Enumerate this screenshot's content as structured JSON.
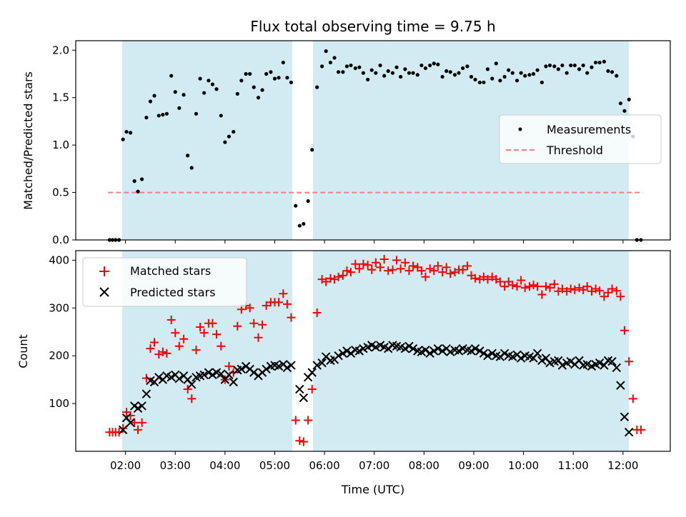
{
  "chart_data": {
    "type": "scatter",
    "title": "Flux total observing time = 9.75 h",
    "xlabel": "Time (UTC)",
    "x_unit": "hours UTC",
    "xlim": [
      1.0,
      12.95
    ],
    "x_ticks": [
      {
        "value": 2,
        "label": "02:00"
      },
      {
        "value": 3,
        "label": "03:00"
      },
      {
        "value": 4,
        "label": "04:00"
      },
      {
        "value": 5,
        "label": "05:00"
      },
      {
        "value": 6,
        "label": "06:00"
      },
      {
        "value": 7,
        "label": "07:00"
      },
      {
        "value": 8,
        "label": "08:00"
      },
      {
        "value": 9,
        "label": "09:00"
      },
      {
        "value": 10,
        "label": "10:00"
      },
      {
        "value": 11,
        "label": "11:00"
      },
      {
        "value": 12,
        "label": "12:00"
      }
    ],
    "shaded_intervals": [
      {
        "start": 1.93,
        "end": 5.35,
        "color": "#add8e6"
      },
      {
        "start": 5.77,
        "end": 12.12,
        "color": "#add8e6"
      }
    ],
    "top_panel": {
      "ylabel": "Matched/Predicted stars",
      "ylim": [
        0,
        2.1
      ],
      "y_ticks": [
        {
          "value": 0.0,
          "label": "0.0"
        },
        {
          "value": 0.5,
          "label": "0.5"
        },
        {
          "value": 1.0,
          "label": "1.0"
        },
        {
          "value": 1.5,
          "label": "1.5"
        },
        {
          "value": 2.0,
          "label": "2.0"
        }
      ],
      "legend": {
        "position": "center-right",
        "entries": [
          {
            "label": "Measurements",
            "marker": "dot",
            "color": "#000000"
          },
          {
            "label": "Threshold",
            "marker": "dashed-line",
            "color": "#f08080"
          }
        ]
      },
      "threshold": {
        "name": "Threshold",
        "value": 0.5,
        "x_range": [
          1.65,
          12.4
        ],
        "color": "#f08080"
      },
      "series": [
        {
          "name": "Measurements",
          "color": "#000000",
          "x": [
            1.68,
            1.74,
            1.8,
            1.87,
            1.95,
            2.02,
            2.1,
            2.18,
            2.25,
            2.33,
            2.42,
            2.5,
            2.58,
            2.67,
            2.75,
            2.83,
            2.92,
            3.0,
            3.08,
            3.17,
            3.25,
            3.33,
            3.42,
            3.5,
            3.58,
            3.67,
            3.75,
            3.83,
            3.92,
            4.0,
            4.08,
            4.17,
            4.25,
            4.33,
            4.42,
            4.5,
            4.58,
            4.67,
            4.75,
            4.83,
            4.92,
            5.0,
            5.08,
            5.17,
            5.25,
            5.33,
            5.42,
            5.5,
            5.58,
            5.67,
            5.75,
            5.85,
            5.95,
            6.03,
            6.12,
            6.2,
            6.28,
            6.37,
            6.45,
            6.53,
            6.62,
            6.7,
            6.78,
            6.87,
            6.95,
            7.03,
            7.12,
            7.2,
            7.28,
            7.37,
            7.45,
            7.53,
            7.62,
            7.7,
            7.78,
            7.87,
            7.95,
            8.03,
            8.12,
            8.2,
            8.28,
            8.37,
            8.45,
            8.53,
            8.62,
            8.7,
            8.78,
            8.87,
            8.95,
            9.03,
            9.12,
            9.2,
            9.28,
            9.37,
            9.45,
            9.53,
            9.62,
            9.7,
            9.78,
            9.87,
            9.95,
            10.03,
            10.12,
            10.2,
            10.28,
            10.37,
            10.45,
            10.53,
            10.62,
            10.7,
            10.78,
            10.87,
            10.95,
            11.03,
            11.12,
            11.2,
            11.28,
            11.37,
            11.45,
            11.53,
            11.62,
            11.7,
            11.78,
            11.87,
            11.95,
            12.03,
            12.12,
            12.2,
            12.28,
            12.36
          ],
          "y": [
            0.0,
            0.0,
            0.0,
            0.0,
            1.06,
            1.14,
            1.13,
            0.62,
            0.51,
            0.64,
            1.29,
            1.46,
            1.52,
            1.31,
            1.32,
            1.33,
            1.73,
            1.56,
            1.39,
            1.53,
            0.89,
            0.76,
            1.33,
            1.7,
            1.55,
            1.68,
            1.64,
            1.59,
            1.31,
            1.03,
            1.09,
            1.14,
            1.54,
            1.68,
            1.75,
            1.75,
            1.61,
            1.5,
            1.58,
            1.75,
            1.77,
            1.7,
            1.71,
            1.87,
            1.71,
            1.66,
            0.36,
            0.15,
            0.17,
            0.41,
            0.95,
            1.61,
            1.83,
            1.99,
            1.87,
            1.92,
            1.77,
            1.77,
            1.83,
            1.84,
            1.81,
            1.82,
            1.76,
            1.69,
            1.79,
            1.76,
            1.84,
            1.73,
            1.78,
            1.76,
            1.82,
            1.72,
            1.8,
            1.76,
            1.76,
            1.74,
            1.84,
            1.81,
            1.84,
            1.86,
            1.85,
            1.72,
            1.78,
            1.77,
            1.74,
            1.76,
            1.81,
            1.83,
            1.72,
            1.69,
            1.66,
            1.66,
            1.8,
            1.7,
            1.86,
            1.68,
            1.72,
            1.79,
            1.76,
            1.68,
            1.76,
            1.73,
            1.74,
            1.75,
            1.79,
            1.66,
            1.83,
            1.84,
            1.83,
            1.8,
            1.84,
            1.76,
            1.84,
            1.84,
            1.8,
            1.84,
            1.76,
            1.82,
            1.87,
            1.87,
            1.88,
            1.78,
            1.77,
            1.73,
            1.44,
            1.36,
            1.48,
            1.09,
            0.0,
            0.0
          ]
        }
      ]
    },
    "bottom_panel": {
      "ylabel": "Count",
      "ylim": [
        0,
        420
      ],
      "y_ticks": [
        {
          "value": 100,
          "label": "100"
        },
        {
          "value": 200,
          "label": "200"
        },
        {
          "value": 300,
          "label": "300"
        },
        {
          "value": 400,
          "label": "400"
        }
      ],
      "legend": {
        "position": "upper-left",
        "entries": [
          {
            "label": "Matched stars",
            "marker": "plus",
            "color": "#ff0000"
          },
          {
            "label": "Predicted stars",
            "marker": "x",
            "color": "#000000"
          }
        ]
      },
      "series": [
        {
          "name": "Matched stars",
          "marker": "plus",
          "color": "#ff0000",
          "x": [
            1.68,
            1.74,
            1.8,
            1.87,
            1.95,
            2.02,
            2.1,
            2.18,
            2.25,
            2.33,
            2.42,
            2.5,
            2.58,
            2.67,
            2.75,
            2.83,
            2.92,
            3.0,
            3.08,
            3.17,
            3.25,
            3.33,
            3.42,
            3.5,
            3.58,
            3.67,
            3.75,
            3.83,
            3.92,
            4.0,
            4.08,
            4.17,
            4.25,
            4.33,
            4.42,
            4.5,
            4.58,
            4.67,
            4.75,
            4.83,
            4.92,
            5.0,
            5.08,
            5.17,
            5.25,
            5.33,
            5.42,
            5.5,
            5.58,
            5.67,
            5.75,
            5.85,
            5.95,
            6.03,
            6.12,
            6.2,
            6.28,
            6.37,
            6.45,
            6.53,
            6.62,
            6.7,
            6.78,
            6.87,
            6.95,
            7.03,
            7.12,
            7.2,
            7.28,
            7.37,
            7.45,
            7.53,
            7.62,
            7.7,
            7.78,
            7.87,
            7.95,
            8.03,
            8.12,
            8.2,
            8.28,
            8.37,
            8.45,
            8.53,
            8.62,
            8.7,
            8.78,
            8.87,
            8.95,
            9.03,
            9.12,
            9.2,
            9.28,
            9.37,
            9.45,
            9.53,
            9.62,
            9.7,
            9.78,
            9.87,
            9.95,
            10.03,
            10.12,
            10.2,
            10.28,
            10.37,
            10.45,
            10.53,
            10.62,
            10.7,
            10.78,
            10.87,
            10.95,
            11.03,
            11.12,
            11.2,
            11.28,
            11.37,
            11.45,
            11.53,
            11.62,
            11.7,
            11.78,
            11.87,
            11.95,
            12.03,
            12.12,
            12.2,
            12.28,
            12.36
          ],
          "y": [
            40,
            40,
            40,
            40,
            48,
            82,
            75,
            60,
            45,
            60,
            153,
            215,
            228,
            203,
            208,
            205,
            275,
            248,
            220,
            235,
            130,
            110,
            212,
            260,
            248,
            268,
            268,
            245,
            220,
            150,
            178,
            165,
            262,
            297,
            305,
            300,
            268,
            238,
            265,
            305,
            312,
            312,
            312,
            330,
            308,
            280,
            65,
            22,
            20,
            65,
            130,
            290,
            360,
            355,
            362,
            360,
            365,
            368,
            378,
            375,
            392,
            382,
            392,
            390,
            380,
            395,
            385,
            402,
            378,
            380,
            400,
            382,
            395,
            378,
            388,
            385,
            378,
            365,
            382,
            378,
            388,
            375,
            385,
            372,
            375,
            380,
            380,
            388,
            368,
            362,
            360,
            365,
            360,
            365,
            360,
            355,
            345,
            355,
            348,
            345,
            358,
            342,
            345,
            348,
            345,
            328,
            345,
            342,
            350,
            335,
            340,
            335,
            340,
            338,
            342,
            338,
            345,
            335,
            340,
            336,
            324,
            332,
            340,
            336,
            324,
            253,
            188,
            110,
            45,
            45
          ]
        },
        {
          "name": "Predicted stars",
          "marker": "x",
          "color": "#000000",
          "x": [
            1.95,
            2.02,
            2.1,
            2.18,
            2.25,
            2.33,
            2.42,
            2.5,
            2.58,
            2.67,
            2.75,
            2.83,
            2.92,
            3.0,
            3.08,
            3.17,
            3.25,
            3.33,
            3.42,
            3.5,
            3.58,
            3.67,
            3.75,
            3.83,
            3.92,
            4.0,
            4.08,
            4.17,
            4.25,
            4.33,
            4.42,
            4.5,
            4.58,
            4.67,
            4.75,
            4.83,
            4.92,
            5.0,
            5.08,
            5.17,
            5.25,
            5.33,
            5.5,
            5.58,
            5.67,
            5.75,
            5.85,
            5.95,
            6.03,
            6.12,
            6.2,
            6.28,
            6.37,
            6.45,
            6.53,
            6.62,
            6.7,
            6.78,
            6.87,
            6.95,
            7.03,
            7.12,
            7.2,
            7.28,
            7.37,
            7.45,
            7.53,
            7.62,
            7.7,
            7.78,
            7.87,
            7.95,
            8.03,
            8.12,
            8.2,
            8.28,
            8.37,
            8.45,
            8.53,
            8.62,
            8.7,
            8.78,
            8.87,
            8.95,
            9.03,
            9.12,
            9.2,
            9.28,
            9.37,
            9.45,
            9.53,
            9.62,
            9.7,
            9.78,
            9.87,
            9.95,
            10.03,
            10.12,
            10.2,
            10.28,
            10.37,
            10.45,
            10.53,
            10.62,
            10.7,
            10.78,
            10.87,
            10.95,
            11.03,
            11.12,
            11.2,
            11.28,
            11.37,
            11.45,
            11.53,
            11.62,
            11.7,
            11.78,
            11.87,
            11.95,
            12.03,
            12.12
          ],
          "y": [
            45,
            70,
            60,
            95,
            90,
            95,
            120,
            148,
            145,
            155,
            150,
            158,
            155,
            160,
            152,
            158,
            150,
            140,
            155,
            158,
            160,
            165,
            160,
            165,
            162,
            150,
            160,
            145,
            170,
            172,
            178,
            172,
            165,
            158,
            165,
            172,
            178,
            180,
            178,
            182,
            175,
            180,
            130,
            112,
            155,
            165,
            180,
            185,
            198,
            190,
            192,
            200,
            205,
            210,
            205,
            212,
            210,
            215,
            218,
            222,
            218,
            222,
            218,
            215,
            222,
            220,
            218,
            215,
            220,
            215,
            210,
            208,
            212,
            205,
            210,
            215,
            210,
            215,
            208,
            212,
            210,
            215,
            212,
            210,
            215,
            210,
            205,
            200,
            205,
            200,
            198,
            205,
            200,
            198,
            202,
            195,
            200,
            198,
            195,
            205,
            190,
            195,
            185,
            188,
            190,
            180,
            185,
            188,
            182,
            190,
            180,
            182,
            178,
            182,
            185,
            180,
            190,
            188,
            175,
            138,
            72,
            40
          ]
        }
      ]
    }
  }
}
